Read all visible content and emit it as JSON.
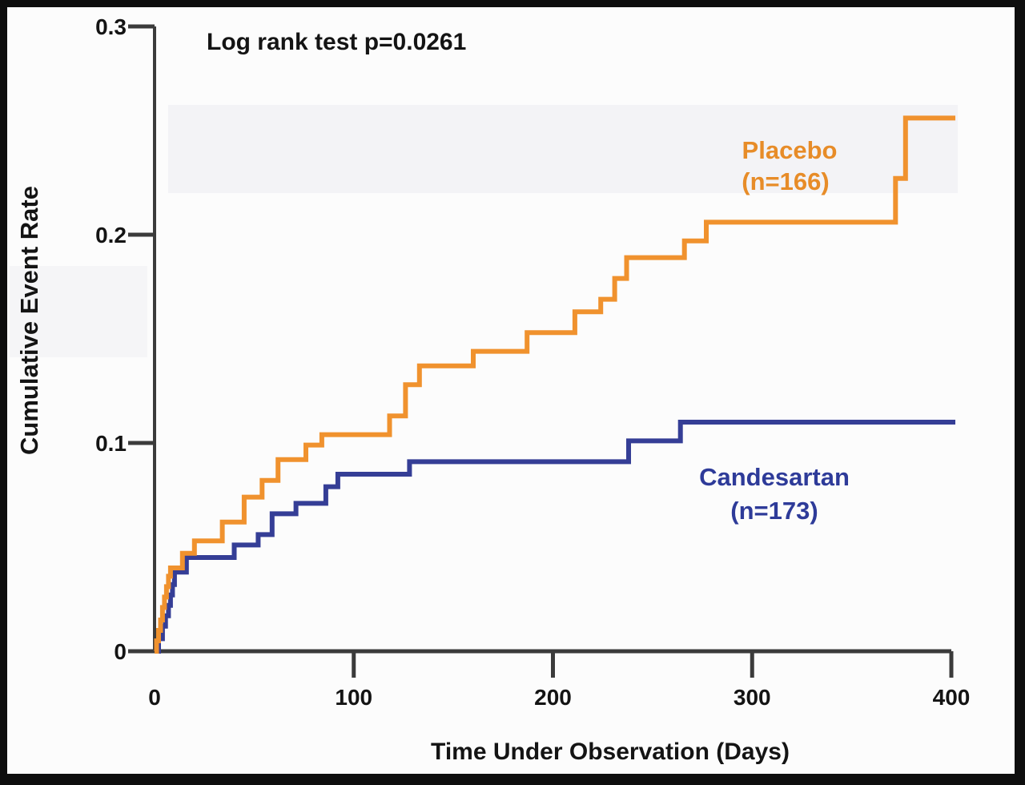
{
  "annotation": {
    "text": "Log rank test p=0.0261"
  },
  "chart_data": {
    "type": "line",
    "subtype": "kaplan-meier-step",
    "title": "Log rank test p=0.0261",
    "xlabel": "Time Under Observation (Days)",
    "ylabel": "Cumulative Event Rate",
    "xlim": [
      0,
      400
    ],
    "ylim": [
      0,
      0.3
    ],
    "grid": false,
    "legend_position": "inside-right",
    "x_ticks": [
      {
        "label": "0",
        "value": 0
      },
      {
        "label": "100",
        "value": 100
      },
      {
        "label": "200",
        "value": 200
      },
      {
        "label": "300",
        "value": 300
      },
      {
        "label": "400",
        "value": 400
      }
    ],
    "y_ticks": [
      {
        "label": "0.3",
        "value": 0.3
      },
      {
        "label": "0.2",
        "value": 0.2
      },
      {
        "label": "0.1",
        "value": 0.1
      },
      {
        "label": "0",
        "value": 0
      }
    ],
    "series": [
      {
        "name": "Placebo",
        "n_label": "(n=166)",
        "color": "#F0922E",
        "label_color": "#E78C28",
        "points": [
          [
            0,
            0
          ],
          [
            1,
            0.005
          ],
          [
            2,
            0.01
          ],
          [
            3,
            0.015
          ],
          [
            4,
            0.021
          ],
          [
            5,
            0.026
          ],
          [
            6,
            0.031
          ],
          [
            7,
            0.036
          ],
          [
            8,
            0.04
          ],
          [
            14,
            0.047
          ],
          [
            20,
            0.053
          ],
          [
            34,
            0.062
          ],
          [
            45,
            0.074
          ],
          [
            54,
            0.082
          ],
          [
            62,
            0.092
          ],
          [
            76,
            0.099
          ],
          [
            84,
            0.104
          ],
          [
            118,
            0.113
          ],
          [
            126,
            0.128
          ],
          [
            133,
            0.137
          ],
          [
            160,
            0.144
          ],
          [
            187,
            0.153
          ],
          [
            211,
            0.163
          ],
          [
            224,
            0.169
          ],
          [
            231,
            0.179
          ],
          [
            237,
            0.189
          ],
          [
            266,
            0.197
          ],
          [
            277,
            0.206
          ],
          [
            372,
            0.227
          ],
          [
            377,
            0.256
          ],
          [
            402,
            0.256
          ]
        ]
      },
      {
        "name": "Candesartan",
        "n_label": "(n=173)",
        "color": "#353E96",
        "label_color": "#2E3B99",
        "points": [
          [
            0,
            0
          ],
          [
            2,
            0.006
          ],
          [
            4,
            0.012
          ],
          [
            5.5,
            0.017
          ],
          [
            7,
            0.022
          ],
          [
            8,
            0.027
          ],
          [
            9,
            0.032
          ],
          [
            10,
            0.038
          ],
          [
            16,
            0.045
          ],
          [
            40,
            0.051
          ],
          [
            52,
            0.056
          ],
          [
            59,
            0.066
          ],
          [
            71,
            0.071
          ],
          [
            86,
            0.079
          ],
          [
            92,
            0.085
          ],
          [
            128,
            0.091
          ],
          [
            238,
            0.101
          ],
          [
            264,
            0.11
          ],
          [
            402,
            0.11
          ]
        ]
      }
    ],
    "axis_color": "#3b3b3b",
    "tick_label_color": "#141414"
  }
}
